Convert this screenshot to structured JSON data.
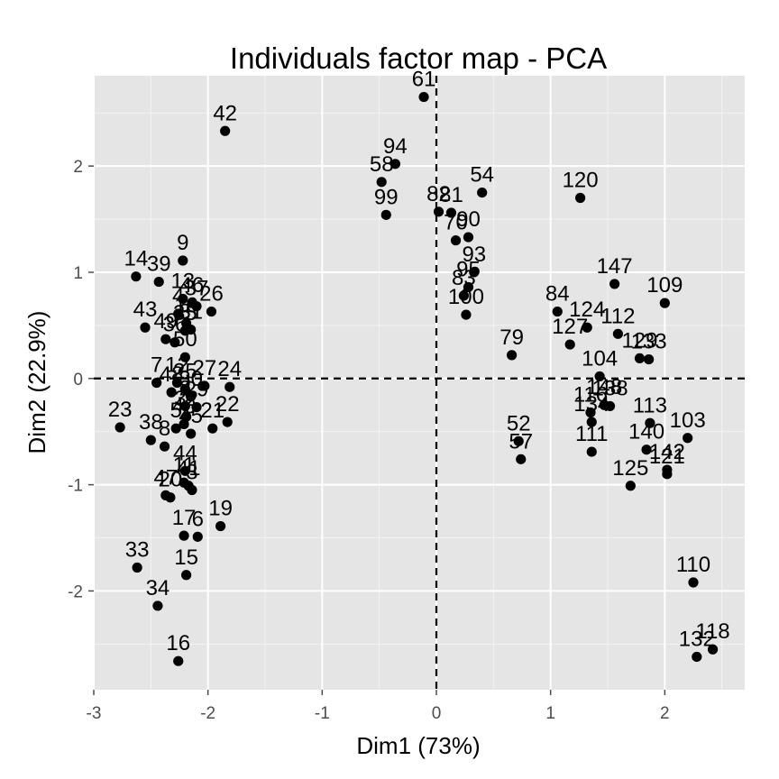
{
  "chart_data": {
    "type": "scatter",
    "title": "Individuals factor map - PCA",
    "xlabel": "Dim1 (73%)",
    "ylabel": "Dim2 (22.9%)",
    "xlim": [
      -3.0,
      2.7
    ],
    "ylim": [
      -2.93,
      2.85
    ],
    "xticks": [
      -3,
      -2,
      -1,
      0,
      1,
      2
    ],
    "yticks": [
      -2,
      -1,
      0,
      1,
      2
    ],
    "xtick_labels": [
      "-3",
      "-2",
      "-1",
      "0",
      "1",
      "2"
    ],
    "ytick_labels": [
      "-2",
      "-1",
      "0",
      "1",
      "2"
    ],
    "reference_lines": {
      "x": 0,
      "y": 0,
      "style": "dashed"
    },
    "grid": true,
    "colors": {
      "panel": "#e5e5e5",
      "grid": "#ffffff",
      "point": "#000000"
    },
    "points": [
      {
        "label": "61",
        "x": -0.11,
        "y": 2.65
      },
      {
        "label": "42",
        "x": -1.85,
        "y": 2.33
      },
      {
        "label": "94",
        "x": -0.36,
        "y": 2.02
      },
      {
        "label": "58",
        "x": -0.48,
        "y": 1.85
      },
      {
        "label": "99",
        "x": -0.44,
        "y": 1.54
      },
      {
        "label": "54",
        "x": 0.4,
        "y": 1.75
      },
      {
        "label": "82",
        "x": 0.02,
        "y": 1.57
      },
      {
        "label": "81",
        "x": 0.13,
        "y": 1.56
      },
      {
        "label": "70",
        "x": 0.17,
        "y": 1.3
      },
      {
        "label": "90",
        "x": 0.28,
        "y": 1.33
      },
      {
        "label": "93",
        "x": 0.33,
        "y": 1.0
      },
      {
        "label": "95",
        "x": 0.28,
        "y": 0.86
      },
      {
        "label": "83",
        "x": 0.24,
        "y": 0.78
      },
      {
        "label": "100",
        "x": 0.26,
        "y": 0.6
      },
      {
        "label": "120",
        "x": 1.26,
        "y": 1.7
      },
      {
        "label": "147",
        "x": 1.56,
        "y": 0.89
      },
      {
        "label": "109",
        "x": 2.0,
        "y": 0.71
      },
      {
        "label": "84",
        "x": 1.06,
        "y": 0.63
      },
      {
        "label": "124",
        "x": 1.32,
        "y": 0.48
      },
      {
        "label": "112",
        "x": 1.59,
        "y": 0.42
      },
      {
        "label": "127",
        "x": 1.17,
        "y": 0.32
      },
      {
        "label": "129",
        "x": 1.78,
        "y": 0.19
      },
      {
        "label": "133",
        "x": 1.86,
        "y": 0.18
      },
      {
        "label": "104",
        "x": 1.43,
        "y": 0.02
      },
      {
        "label": "79",
        "x": 0.66,
        "y": 0.22
      },
      {
        "label": "116",
        "x": 1.35,
        "y": -0.32
      },
      {
        "label": "148",
        "x": 1.47,
        "y": -0.25
      },
      {
        "label": "138",
        "x": 1.52,
        "y": -0.26
      },
      {
        "label": "134",
        "x": 1.36,
        "y": -0.41
      },
      {
        "label": "111",
        "x": 1.36,
        "y": -0.69
      },
      {
        "label": "113",
        "x": 1.87,
        "y": -0.42
      },
      {
        "label": "103",
        "x": 2.2,
        "y": -0.56
      },
      {
        "label": "140",
        "x": 1.84,
        "y": -0.67
      },
      {
        "label": "142",
        "x": 2.02,
        "y": -0.86
      },
      {
        "label": "121",
        "x": 2.02,
        "y": -0.9
      },
      {
        "label": "125",
        "x": 1.7,
        "y": -1.01
      },
      {
        "label": "52",
        "x": 0.72,
        "y": -0.59
      },
      {
        "label": "57",
        "x": 0.74,
        "y": -0.76
      },
      {
        "label": "110",
        "x": 2.25,
        "y": -1.92
      },
      {
        "label": "118",
        "x": 2.42,
        "y": -2.55
      },
      {
        "label": "132",
        "x": 2.28,
        "y": -2.62
      },
      {
        "label": "9",
        "x": -2.22,
        "y": 1.11
      },
      {
        "label": "14",
        "x": -2.63,
        "y": 0.96
      },
      {
        "label": "39",
        "x": -2.43,
        "y": 0.91
      },
      {
        "label": "13",
        "x": -2.22,
        "y": 0.75
      },
      {
        "label": "46",
        "x": -2.14,
        "y": 0.71
      },
      {
        "label": "26",
        "x": -1.97,
        "y": 0.63
      },
      {
        "label": "4",
        "x": -2.26,
        "y": 0.61
      },
      {
        "label": "37",
        "x": -2.1,
        "y": 0.68
      },
      {
        "label": "10",
        "x": -2.19,
        "y": 0.52
      },
      {
        "label": "43",
        "x": -2.55,
        "y": 0.48
      },
      {
        "label": "49",
        "x": -2.37,
        "y": 0.37
      },
      {
        "label": "31",
        "x": -2.15,
        "y": 0.46
      },
      {
        "label": "35",
        "x": -2.2,
        "y": 0.45
      },
      {
        "label": "36",
        "x": -2.29,
        "y": 0.34
      },
      {
        "label": "50",
        "x": -2.2,
        "y": 0.2
      },
      {
        "label": "7",
        "x": -2.45,
        "y": -0.04
      },
      {
        "label": "12",
        "x": -2.27,
        "y": -0.04
      },
      {
        "label": "25",
        "x": -2.2,
        "y": -0.1
      },
      {
        "label": "30",
        "x": -2.15,
        "y": -0.17
      },
      {
        "label": "27",
        "x": -2.03,
        "y": -0.07
      },
      {
        "label": "24",
        "x": -1.81,
        "y": -0.08
      },
      {
        "label": "48",
        "x": -2.32,
        "y": -0.13
      },
      {
        "label": "2",
        "x": -2.2,
        "y": -0.26
      },
      {
        "label": "29",
        "x": -2.1,
        "y": -0.27
      },
      {
        "label": "32",
        "x": -2.19,
        "y": -0.36
      },
      {
        "label": "21",
        "x": -1.96,
        "y": -0.47
      },
      {
        "label": "22",
        "x": -1.83,
        "y": -0.41
      },
      {
        "label": "40",
        "x": -2.21,
        "y": -0.43
      },
      {
        "label": "5",
        "x": -2.28,
        "y": -0.47
      },
      {
        "label": "45",
        "x": -2.15,
        "y": -0.52
      },
      {
        "label": "23",
        "x": -2.77,
        "y": -0.46
      },
      {
        "label": "38",
        "x": -2.5,
        "y": -0.58
      },
      {
        "label": "8",
        "x": -2.38,
        "y": -0.64
      },
      {
        "label": "44",
        "x": -2.2,
        "y": -0.87
      },
      {
        "label": "41",
        "x": -2.17,
        "y": -1.01
      },
      {
        "label": "47",
        "x": -2.37,
        "y": -1.1
      },
      {
        "label": "20",
        "x": -2.33,
        "y": -1.12
      },
      {
        "label": "11",
        "x": -2.21,
        "y": -0.98
      },
      {
        "label": "3",
        "x": -2.14,
        "y": -1.05
      },
      {
        "label": "19",
        "x": -1.89,
        "y": -1.39
      },
      {
        "label": "6",
        "x": -2.09,
        "y": -1.49
      },
      {
        "label": "17",
        "x": -2.21,
        "y": -1.48
      },
      {
        "label": "15",
        "x": -2.19,
        "y": -1.85
      },
      {
        "label": "33",
        "x": -2.62,
        "y": -1.78
      },
      {
        "label": "34",
        "x": -2.44,
        "y": -2.14
      },
      {
        "label": "16",
        "x": -2.26,
        "y": -2.66
      }
    ]
  }
}
